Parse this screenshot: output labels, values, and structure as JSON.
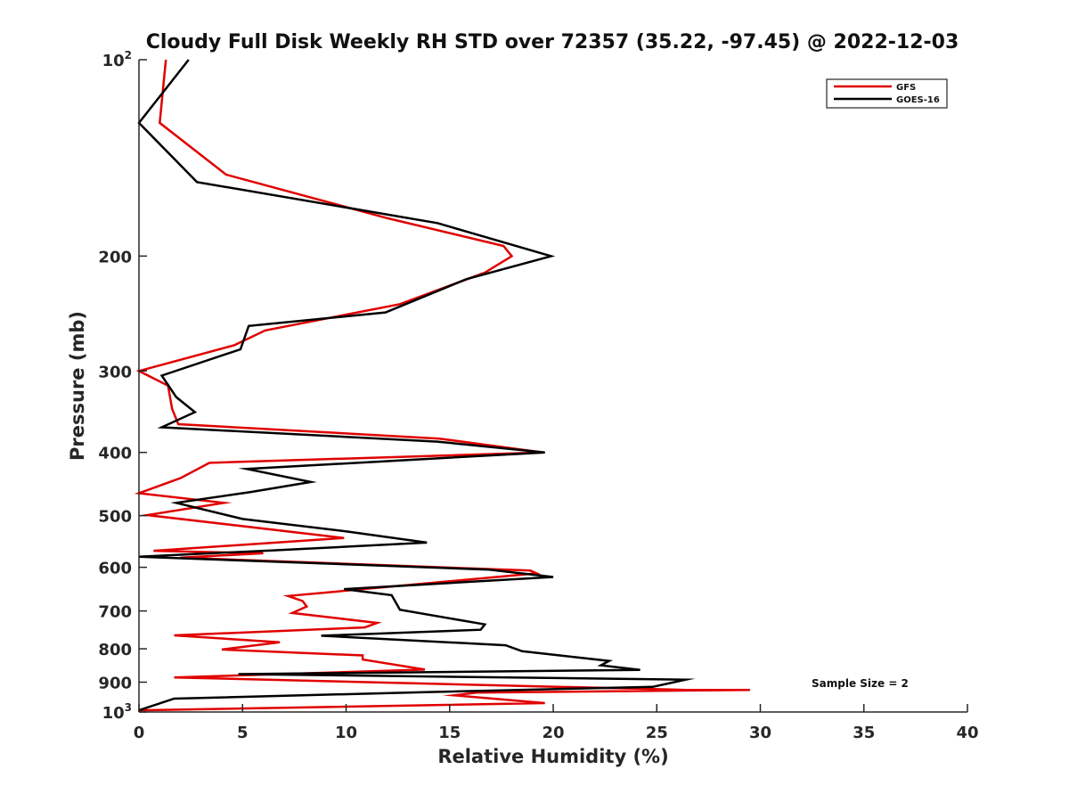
{
  "chart_data": {
    "type": "line",
    "title": "Cloudy Full Disk Weekly RH STD over 72357 (35.22, -97.45) @ 2022-12-03",
    "xlabel": "Relative Humidity (%)",
    "ylabel": "Pressure (mb)",
    "xlim": [
      0,
      40
    ],
    "ylim": [
      100,
      1000
    ],
    "y_scale": "log",
    "y_reversed": true,
    "x_ticks": [
      "0",
      "5",
      "10",
      "15",
      "20",
      "25",
      "30",
      "35",
      "40"
    ],
    "y_ticks": [
      {
        "value": 100,
        "base": "10",
        "exp": "2"
      },
      {
        "value": 200,
        "label": "200"
      },
      {
        "value": 300,
        "label": "300"
      },
      {
        "value": 400,
        "label": "400"
      },
      {
        "value": 500,
        "label": "500"
      },
      {
        "value": 600,
        "label": "600"
      },
      {
        "value": 700,
        "label": "700"
      },
      {
        "value": 800,
        "label": "800"
      },
      {
        "value": 900,
        "label": "900"
      },
      {
        "value": 1000,
        "base": "10",
        "exp": "3"
      }
    ],
    "grid": false,
    "legend_position": "top-right",
    "annotation": "Sample Size = 2",
    "series": [
      {
        "name": "GFS",
        "color": "#e00000",
        "points": [
          [
            1.3,
            100
          ],
          [
            1.0,
            125
          ],
          [
            4.2,
            150
          ],
          [
            12.0,
            175
          ],
          [
            17.6,
            193
          ],
          [
            18.0,
            200
          ],
          [
            16.7,
            212
          ],
          [
            12.6,
            237
          ],
          [
            6.1,
            260
          ],
          [
            4.6,
            274
          ],
          [
            0.0,
            300
          ],
          [
            1.4,
            316
          ],
          [
            1.6,
            343
          ],
          [
            1.9,
            362
          ],
          [
            14.5,
            381
          ],
          [
            19.5,
            400
          ],
          [
            3.4,
            415
          ],
          [
            2.0,
            438
          ],
          [
            0.0,
            462
          ],
          [
            4.1,
            478
          ],
          [
            0.4,
            499
          ],
          [
            9.9,
            541
          ],
          [
            0.7,
            566
          ],
          [
            6.0,
            571
          ],
          [
            2.0,
            580
          ],
          [
            18.9,
            607
          ],
          [
            19.2,
            613
          ],
          [
            7.2,
            664
          ],
          [
            7.9,
            676
          ],
          [
            8.1,
            689
          ],
          [
            7.4,
            705
          ],
          [
            11.5,
            730
          ],
          [
            10.9,
            742
          ],
          [
            1.7,
            763
          ],
          [
            6.8,
            782
          ],
          [
            4.0,
            802
          ],
          [
            10.8,
            819
          ],
          [
            10.8,
            831
          ],
          [
            13.8,
            861
          ],
          [
            1.7,
            885
          ],
          [
            26.4,
            925
          ],
          [
            29.5,
            925
          ],
          [
            16.3,
            934
          ],
          [
            15.2,
            943
          ],
          [
            19.6,
            969
          ],
          [
            0.0,
            994
          ]
        ]
      },
      {
        "name": "GOES-16",
        "color": "#000000",
        "points": [
          [
            2.4,
            100
          ],
          [
            0.0,
            125
          ],
          [
            2.8,
            154
          ],
          [
            14.4,
            178
          ],
          [
            19.9,
            200
          ],
          [
            15.8,
            217
          ],
          [
            11.9,
            244
          ],
          [
            5.3,
            256
          ],
          [
            4.9,
            278
          ],
          [
            1.1,
            305
          ],
          [
            1.8,
            329
          ],
          [
            2.7,
            347
          ],
          [
            1.1,
            366
          ],
          [
            14.4,
            385
          ],
          [
            19.6,
            400
          ],
          [
            5.2,
            424
          ],
          [
            8.3,
            444
          ],
          [
            5.4,
            460
          ],
          [
            1.8,
            478
          ],
          [
            5.0,
            506
          ],
          [
            10.1,
            529
          ],
          [
            13.9,
            550
          ],
          [
            6.6,
            565
          ],
          [
            0.0,
            578
          ],
          [
            16.9,
            605
          ],
          [
            20.0,
            621
          ],
          [
            9.9,
            648
          ],
          [
            12.2,
            662
          ],
          [
            12.5,
            688
          ],
          [
            12.6,
            697
          ],
          [
            16.7,
            734
          ],
          [
            16.5,
            748
          ],
          [
            8.8,
            764
          ],
          [
            17.7,
            790
          ],
          [
            18.5,
            807
          ],
          [
            22.7,
            835
          ],
          [
            22.3,
            848
          ],
          [
            24.2,
            862
          ],
          [
            4.8,
            875
          ],
          [
            26.4,
            892
          ],
          [
            24.8,
            915
          ],
          [
            14.0,
            932
          ],
          [
            1.7,
            954
          ],
          [
            0.0,
            994
          ]
        ]
      }
    ]
  }
}
